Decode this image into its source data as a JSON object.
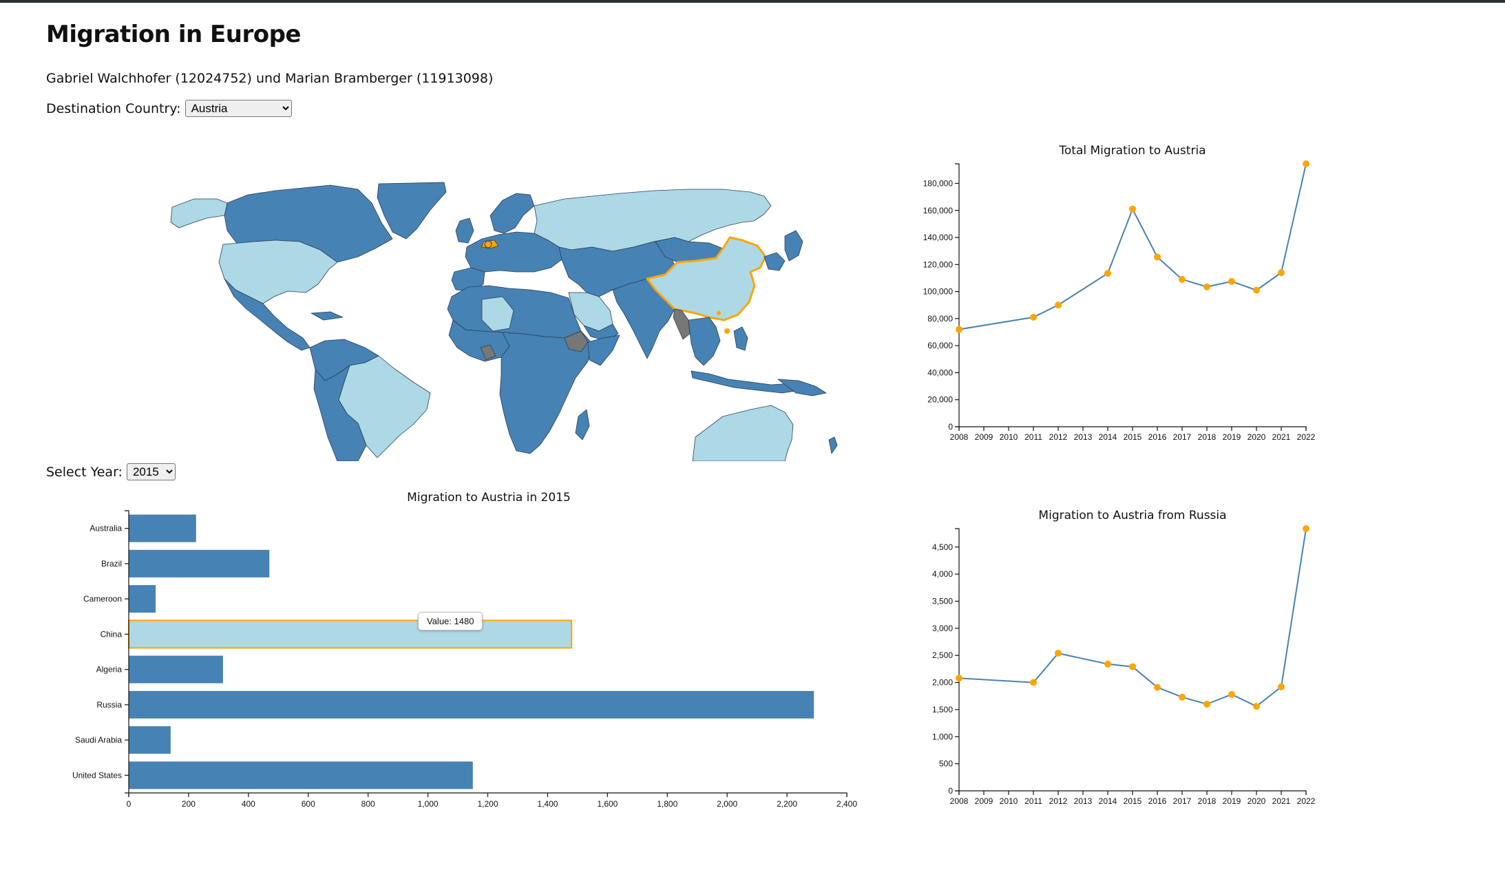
{
  "page": {
    "title": "Migration in Europe",
    "authors": "Gabriel Walchhofer (12024752) und Marian Bramberger (11913098)",
    "country_label": "Destination Country:",
    "country_selected": "Austria",
    "year_label": "Select Year:",
    "year_selected": "2015"
  },
  "colors": {
    "bar": "#4682b4",
    "bar_highlight": "#add8e6",
    "highlight_stroke": "#ffa500",
    "line": "#4682b4",
    "point": "#ffa500",
    "map_dark": "#4682b4",
    "map_light": "#add8e6",
    "map_nodata": "#777777"
  },
  "map": {
    "selected_origin": "China",
    "destination": "Austria"
  },
  "tooltip": {
    "text": "Value: 1480"
  },
  "chart_data": [
    {
      "type": "bar",
      "orientation": "horizontal",
      "title": "Migration to Austria in 2015",
      "categories": [
        "Australia",
        "Brazil",
        "Cameroon",
        "China",
        "Algeria",
        "Russia",
        "Saudi Arabia",
        "United States"
      ],
      "values": [
        225,
        470,
        90,
        1480,
        315,
        2290,
        140,
        1150
      ],
      "highlighted": "China",
      "xlim": [
        0,
        2400
      ],
      "xticks": [
        "0",
        "200",
        "400",
        "600",
        "800",
        "1,000",
        "1,200",
        "1,400",
        "1,600",
        "1,800",
        "2,000",
        "2,200",
        "2,400"
      ]
    },
    {
      "type": "line",
      "title": "Total Migration to Austria",
      "x": [
        2008,
        2011,
        2012,
        2014,
        2015,
        2016,
        2017,
        2018,
        2019,
        2020,
        2021,
        2022
      ],
      "y": [
        72000,
        81000,
        90000,
        113500,
        161000,
        125500,
        109000,
        103500,
        107500,
        101000,
        114000,
        194500
      ],
      "xticks": [
        "2008",
        "2009",
        "2010",
        "2011",
        "2012",
        "2013",
        "2014",
        "2015",
        "2016",
        "2017",
        "2018",
        "2019",
        "2020",
        "2021",
        "2022"
      ],
      "yticks": [
        "0",
        "20,000",
        "40,000",
        "60,000",
        "80,000",
        "100,000",
        "120,000",
        "140,000",
        "160,000",
        "180,000"
      ],
      "ylim": [
        0,
        194500
      ]
    },
    {
      "type": "line",
      "title": "Migration to Austria from Russia",
      "x": [
        2008,
        2011,
        2012,
        2014,
        2015,
        2016,
        2017,
        2018,
        2019,
        2020,
        2021,
        2022
      ],
      "y": [
        2080,
        2000,
        2540,
        2340,
        2290,
        1910,
        1730,
        1600,
        1780,
        1560,
        1920,
        4840
      ],
      "xticks": [
        "2008",
        "2009",
        "2010",
        "2011",
        "2012",
        "2013",
        "2014",
        "2015",
        "2016",
        "2017",
        "2018",
        "2019",
        "2020",
        "2021",
        "2022"
      ],
      "yticks": [
        "0",
        "500",
        "1,000",
        "1,500",
        "2,000",
        "2,500",
        "3,000",
        "3,500",
        "4,000",
        "4,500"
      ],
      "ylim": [
        0,
        4840
      ]
    }
  ]
}
